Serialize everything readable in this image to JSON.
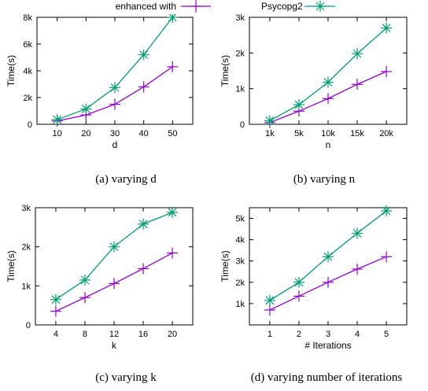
{
  "legend": {
    "entries": [
      {
        "label": "enhanced with",
        "color": "#9400d3",
        "marker": "plus"
      },
      {
        "label": "Psycopg2",
        "color": "#009e73",
        "marker": "star"
      }
    ]
  },
  "captions": {
    "a": "(a)  varying d",
    "b": "(b)  varying n",
    "c": "(c)  varying k",
    "d": "(d)  varying number of iterations"
  },
  "chart_data": [
    {
      "type": "line",
      "xlabel": "d",
      "ylabel": "Time(s)",
      "categories": [
        "10",
        "20",
        "30",
        "40",
        "50"
      ],
      "yticks": [
        0,
        2000,
        4000,
        6000,
        8000
      ],
      "ytick_labels": [
        "0",
        "2k",
        "4k",
        "6k",
        "8k"
      ],
      "ylim": [
        0,
        8000
      ],
      "series": [
        {
          "name": "enhanced with",
          "color": "#9400d3",
          "marker": "plus",
          "values": [
            250,
            700,
            1500,
            2800,
            4300
          ]
        },
        {
          "name": "Psycopg2",
          "color": "#009e73",
          "marker": "star",
          "values": [
            350,
            1150,
            2750,
            5200,
            8000
          ]
        }
      ],
      "caption": "(a)  varying d"
    },
    {
      "type": "line",
      "xlabel": "n",
      "ylabel": "Time(s)",
      "categories": [
        "1k",
        "5k",
        "10k",
        "15k",
        "20k"
      ],
      "yticks": [
        0,
        1000,
        2000,
        3000
      ],
      "ytick_labels": [
        "0",
        "1k",
        "2k",
        "3k"
      ],
      "ylim": [
        0,
        3000
      ],
      "series": [
        {
          "name": "enhanced with",
          "color": "#9400d3",
          "marker": "plus",
          "values": [
            50,
            370,
            720,
            1120,
            1480
          ]
        },
        {
          "name": "Psycopg2",
          "color": "#009e73",
          "marker": "star",
          "values": [
            100,
            550,
            1180,
            1980,
            2700
          ]
        }
      ],
      "caption": "(b)  varying n"
    },
    {
      "type": "line",
      "xlabel": "k",
      "ylabel": "Time(s)",
      "categories": [
        "4",
        "8",
        "12",
        "16",
        "20"
      ],
      "yticks": [
        0,
        1000,
        2000,
        3000
      ],
      "ytick_labels": [
        "0",
        "1k",
        "2k",
        "3k"
      ],
      "ylim": [
        0,
        3000
      ],
      "series": [
        {
          "name": "enhanced with",
          "color": "#9400d3",
          "marker": "plus",
          "values": [
            350,
            700,
            1060,
            1440,
            1840
          ]
        },
        {
          "name": "Psycopg2",
          "color": "#009e73",
          "marker": "star",
          "values": [
            650,
            1150,
            2000,
            2580,
            2880
          ]
        }
      ],
      "caption": "(c)  varying k"
    },
    {
      "type": "line",
      "xlabel": "# Iterations",
      "ylabel": "Time(s)",
      "categories": [
        "1",
        "2",
        "3",
        "4",
        "5"
      ],
      "yticks": [
        1000,
        2000,
        3000,
        4000,
        5000
      ],
      "ytick_labels": [
        "1k",
        "2k",
        "3k",
        "4k",
        "5k"
      ],
      "ylim": [
        0,
        5500
      ],
      "series": [
        {
          "name": "enhanced with",
          "color": "#9400d3",
          "marker": "plus",
          "values": [
            700,
            1350,
            2000,
            2620,
            3200
          ]
        },
        {
          "name": "Psycopg2",
          "color": "#009e73",
          "marker": "star",
          "values": [
            1150,
            2000,
            3200,
            4300,
            5350
          ]
        }
      ],
      "caption": "(d)  varying number of iterations"
    }
  ]
}
